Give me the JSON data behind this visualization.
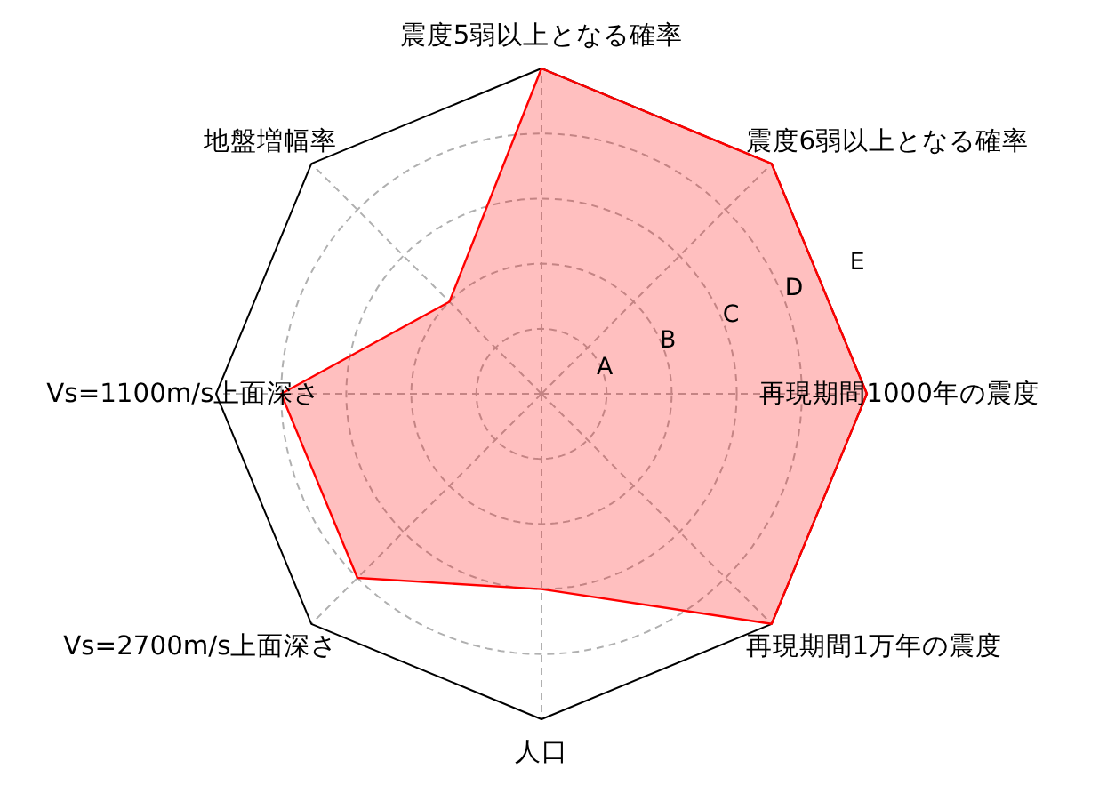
{
  "chart_data": {
    "type": "radar",
    "categories": [
      "震度5弱以上となる確率",
      "震度6弱以上となる確率",
      "再現期間1000年の震度",
      "再現期間1万年の震度",
      "人口",
      "Vs=2700m/s上面深さ",
      "Vs=1100m/s上面深さ",
      "地盤増幅率"
    ],
    "series": [
      {
        "color": "#ff0000",
        "values": [
          5,
          5,
          5,
          5,
          3,
          4,
          4,
          2
        ]
      }
    ],
    "ylim": [
      0,
      5
    ],
    "yticks": [
      {
        "value": 1,
        "label": "A"
      },
      {
        "value": 2,
        "label": "B"
      },
      {
        "value": 3,
        "label": "C"
      },
      {
        "value": 4,
        "label": "D"
      },
      {
        "value": 5,
        "label": "E"
      }
    ],
    "grid": true
  }
}
